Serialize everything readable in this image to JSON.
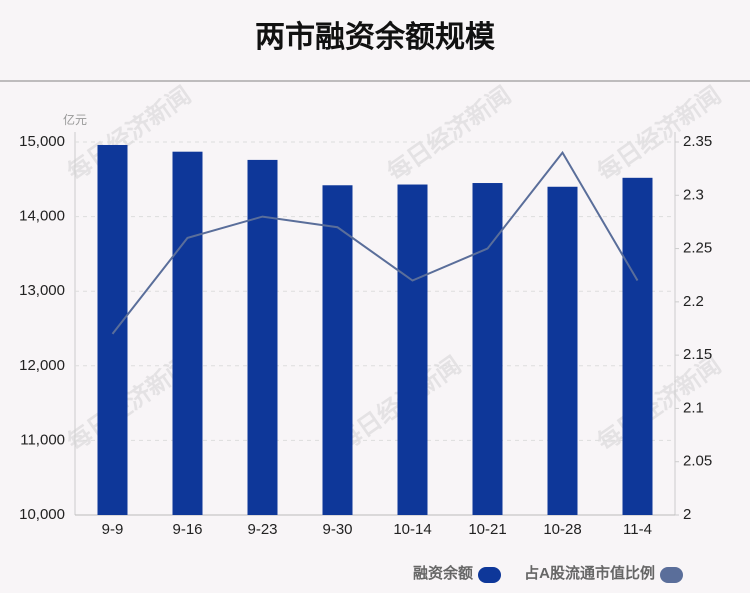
{
  "chart_data": {
    "type": "bar",
    "title": "两市融资余额规模",
    "y_unit": "亿元",
    "watermark": "每日经济新闻",
    "categories": [
      "9-9",
      "9-16",
      "9-23",
      "9-30",
      "10-14",
      "10-21",
      "10-28",
      "11-4"
    ],
    "series": [
      {
        "name": "融资余额",
        "type": "bar",
        "color": "#0e3799",
        "values": [
          14960,
          14870,
          14760,
          14420,
          14430,
          14450,
          14400,
          14520
        ]
      },
      {
        "name": "占A股流通市值比例",
        "type": "line",
        "axis": "y2",
        "color": "#5a6e9a",
        "values": [
          2.17,
          2.26,
          2.28,
          2.27,
          2.22,
          2.25,
          2.34,
          2.22
        ]
      }
    ],
    "ylim": [
      10000,
      15000
    ],
    "yticks": [
      {
        "value": 10000,
        "label": "10,000"
      },
      {
        "value": 11000,
        "label": "11,000"
      },
      {
        "value": 12000,
        "label": "12,000"
      },
      {
        "value": 13000,
        "label": "13,000"
      },
      {
        "value": 14000,
        "label": "14,000"
      },
      {
        "value": 15000,
        "label": "15,000"
      }
    ],
    "y2lim": [
      2,
      2.35
    ],
    "y2ticks": [
      2,
      2.05,
      2.1,
      2.15,
      2.2,
      2.25,
      2.3,
      2.35
    ],
    "grid": true
  }
}
